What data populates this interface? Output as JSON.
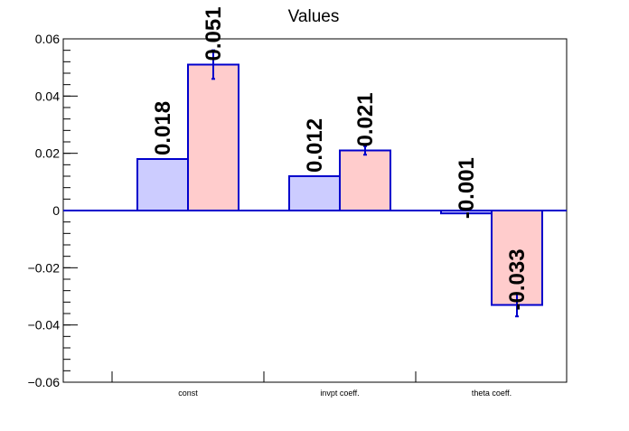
{
  "chart_data": {
    "type": "bar",
    "title": "Values",
    "xlabel": "",
    "ylabel": "",
    "categories": [
      "const",
      "invpt coeff.",
      "theta coeff."
    ],
    "series": [
      {
        "values": [
          0.018,
          0.012,
          -0.001
        ],
        "labels": [
          "0.018",
          "0.012",
          "-0.001"
        ],
        "errors": [
          0,
          0,
          0
        ],
        "fill": "#ccccff",
        "stroke": "#0000cc"
      },
      {
        "values": [
          0.051,
          0.021,
          -0.033
        ],
        "labels": [
          "0.051",
          "0.021",
          "-0.033"
        ],
        "errors": [
          0.005,
          0.0015,
          0.004
        ],
        "fill": "#ffcccc",
        "stroke": "#0000cc"
      }
    ],
    "ylim": [
      -0.06,
      0.06
    ],
    "yticks": [
      -0.06,
      -0.04,
      -0.02,
      0,
      0.02,
      0.04,
      0.06
    ],
    "ytick_labels": [
      "−0.06",
      "−0.04",
      "−0.02",
      "0",
      "0.02",
      "0.04",
      "0.06"
    ],
    "grid": false,
    "legend": "none",
    "zero_line_color": "#0000cc",
    "error_bar_color": "#0000cc"
  }
}
